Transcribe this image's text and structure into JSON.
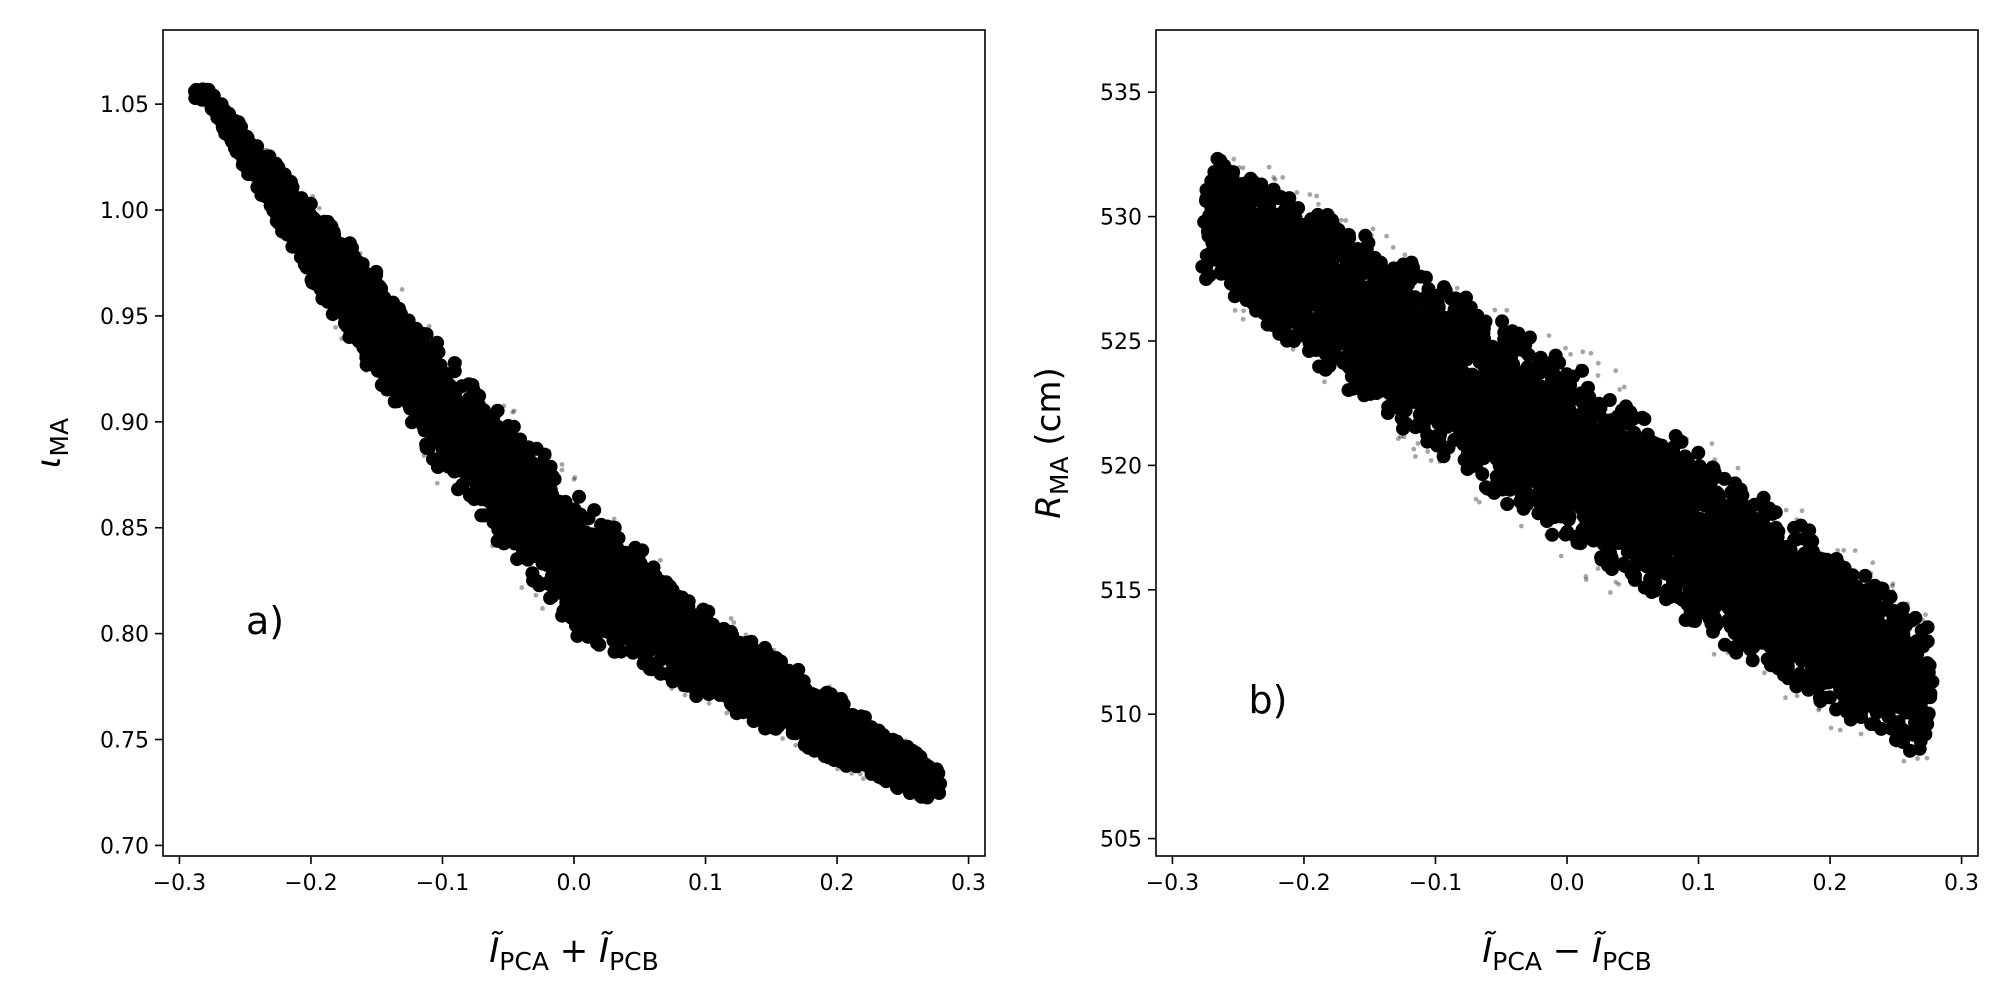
{
  "chart_data": [
    {
      "type": "scatter",
      "panel_label": "a)",
      "xlabel": {
        "parts": [
          "Ĩ",
          "PCA",
          " + ",
          "Ĩ",
          "PCB"
        ]
      },
      "ylabel": {
        "parts": [
          "ι",
          "MA"
        ]
      },
      "xlim": [
        -0.3125,
        0.3125
      ],
      "ylim": [
        0.695,
        1.085
      ],
      "xticks": [
        -0.3,
        -0.2,
        -0.1,
        0.0,
        0.1,
        0.2,
        0.3
      ],
      "xtick_labels": [
        "−0.3",
        "−0.2",
        "−0.1",
        "0.0",
        "0.1",
        "0.2",
        "0.3"
      ],
      "yticks": [
        0.7,
        0.75,
        0.8,
        0.85,
        0.9,
        0.95,
        1.0,
        1.05
      ],
      "ytick_labels": [
        "0.70",
        "0.75",
        "0.80",
        "0.85",
        "0.90",
        "0.95",
        "1.00",
        "1.05"
      ],
      "point_color": "#000000",
      "grid": false,
      "envelope": {
        "x": [
          -0.28,
          -0.2,
          -0.1,
          0.0,
          0.1,
          0.2,
          0.27
        ],
        "y_center": [
          1.055,
          0.985,
          0.905,
          0.835,
          0.79,
          0.755,
          0.73
        ],
        "half_width": [
          0.004,
          0.025,
          0.04,
          0.045,
          0.028,
          0.02,
          0.012
        ]
      }
    },
    {
      "type": "scatter",
      "panel_label": "b)",
      "xlabel": {
        "parts": [
          "Ĩ",
          "PCA",
          " − ",
          "Ĩ",
          "PCB"
        ]
      },
      "ylabel": {
        "parts": [
          "R",
          "MA",
          " (cm)"
        ]
      },
      "xlim": [
        -0.3125,
        0.3125
      ],
      "ylim": [
        504.3,
        537.5
      ],
      "xticks": [
        -0.3,
        -0.2,
        -0.1,
        0.0,
        0.1,
        0.2,
        0.3
      ],
      "xtick_labels": [
        "−0.3",
        "−0.2",
        "−0.1",
        "0.0",
        "0.1",
        "0.2",
        "0.3"
      ],
      "yticks": [
        505,
        510,
        515,
        520,
        525,
        530,
        535
      ],
      "ytick_labels": [
        "505",
        "510",
        "515",
        "520",
        "525",
        "530",
        "535"
      ],
      "point_color": "#000000",
      "grid": false,
      "envelope": {
        "x": [
          -0.27,
          -0.2,
          -0.1,
          0.0,
          0.1,
          0.2,
          0.27
        ],
        "y_center": [
          530.0,
          527.5,
          524.0,
          520.5,
          517.0,
          513.5,
          511.0
        ],
        "half_width": [
          3.2,
          4.0,
          4.6,
          4.8,
          4.6,
          4.2,
          3.5
        ]
      }
    }
  ]
}
